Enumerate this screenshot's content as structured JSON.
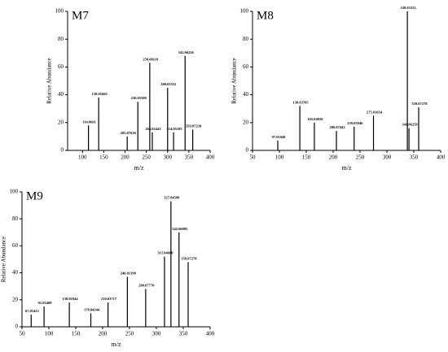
{
  "chart_data": [
    {
      "type": "bar",
      "title": "M7",
      "xlabel": "m/z",
      "ylabel": "Relative Abundance",
      "x": [
        114.0661,
        138.01665,
        205.07626,
        230.05588,
        258.08119,
        264.02441,
        300.03552,
        314.05185,
        341.06226,
        359.0723
      ],
      "peak_labels": [
        "114.0661",
        "138.01665",
        "205.07626",
        "230.05588",
        "258.08119",
        "264.02441",
        "300.03552",
        "314.05185",
        "341.06226",
        "359.07230"
      ],
      "values": [
        18,
        38,
        10,
        35,
        63,
        13,
        45,
        13,
        68,
        15
      ],
      "color": "#000000",
      "xlim": [
        65,
        400
      ],
      "xticks": [
        100,
        150,
        200,
        250,
        300,
        350,
        400
      ],
      "ylim": [
        0,
        100
      ],
      "yticks": [
        0,
        20,
        40,
        60,
        80,
        100
      ]
    },
    {
      "type": "bar",
      "title": "M8",
      "xlabel": "m/z",
      "ylabel": "Relative Abundance",
      "x": [
        97.0104,
        138.03705,
        165.04836,
        206.07443,
        239.03946,
        275.01654,
        338.03333,
        341.06259,
        359.07278
      ],
      "peak_labels": [
        "97.01040",
        "138.03705",
        "165.04836",
        "206.07443",
        "239.03946",
        "275.01654",
        "338.03333",
        "341.06259",
        "359.07278"
      ],
      "values": [
        7,
        32,
        20,
        14,
        17,
        25,
        100,
        16,
        31
      ],
      "color": "#000000",
      "xlim": [
        50,
        400
      ],
      "xticks": [
        50,
        100,
        150,
        200,
        250,
        300,
        350,
        400
      ],
      "ylim": [
        0,
        100
      ],
      "yticks": [
        0,
        20,
        40,
        60,
        80,
        100
      ]
    },
    {
      "type": "bar",
      "title": "M9",
      "xlabel": "m/z",
      "ylabel": "Relative Abundance",
      "x": [
        67.05423,
        91.05408,
        138.01844,
        178.04344,
        210.03717,
        246.01398,
        280.0777,
        315.0468,
        327.0459,
        342.06985,
        359.07278
      ],
      "peak_labels": [
        "67.05423",
        "91.05408",
        "138.01844",
        "178.04344",
        "210.03717",
        "246.01398",
        "280.07770",
        "315.04680",
        "327.04590",
        "342.06985",
        "359.07278"
      ],
      "values": [
        9,
        15,
        18,
        10,
        18,
        37,
        28,
        52,
        93,
        70,
        48
      ],
      "color": "#000000",
      "xlim": [
        50,
        400
      ],
      "xticks": [
        50,
        100,
        150,
        200,
        250,
        300,
        350,
        400
      ],
      "ylim": [
        0,
        100
      ],
      "yticks": [
        0,
        20,
        40,
        60,
        80,
        100
      ]
    }
  ]
}
